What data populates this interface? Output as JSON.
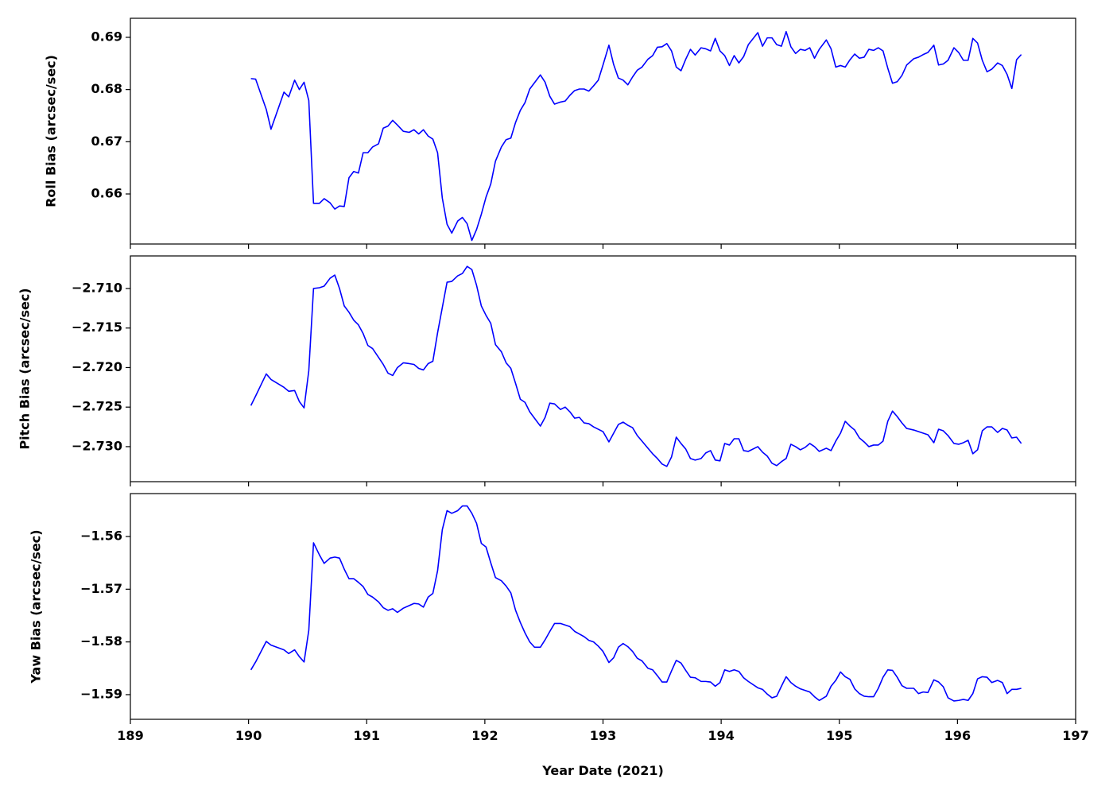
{
  "chart_data": [
    {
      "type": "line",
      "ylabel": "Roll Bias (arcsec/sec)",
      "color": "#0000ff",
      "xlim": [
        189,
        197
      ],
      "ylim": [
        0.65041,
        0.69365
      ],
      "yticks": [
        0.66,
        0.67,
        0.68,
        0.69
      ],
      "x": [
        190.02,
        190.06,
        190.15,
        190.19,
        190.3,
        190.34,
        190.39,
        190.43,
        190.47,
        190.51,
        190.55,
        190.6,
        190.64,
        190.69,
        190.73,
        190.77,
        190.81,
        190.85,
        190.89,
        190.93,
        190.97,
        191.01,
        191.05,
        191.1,
        191.14,
        191.18,
        191.22,
        191.26,
        191.31,
        191.36,
        191.4,
        191.44,
        191.48,
        191.52,
        191.56,
        191.6,
        191.64,
        191.68,
        191.72,
        191.77,
        191.81,
        191.85,
        191.89,
        191.93,
        191.97,
        192.01,
        192.05,
        192.09,
        192.14,
        192.18,
        192.22,
        192.26,
        192.3,
        192.34,
        192.38,
        192.42,
        192.47,
        192.51,
        192.55,
        192.59,
        192.64,
        192.68,
        192.72,
        192.76,
        192.8,
        192.84,
        192.88,
        192.92,
        192.96,
        193.0,
        193.05,
        193.09,
        193.13,
        193.17,
        193.21,
        193.25,
        193.29,
        193.33,
        193.38,
        193.42,
        193.46,
        193.5,
        193.54,
        193.58,
        193.62,
        193.66,
        193.7,
        193.74,
        193.78,
        193.83,
        193.87,
        193.91,
        193.95,
        193.99,
        194.03,
        194.07,
        194.11,
        194.15,
        194.19,
        194.23,
        194.31,
        194.35,
        194.39,
        194.43,
        194.47,
        194.51,
        194.55,
        194.59,
        194.63,
        194.67,
        194.71,
        194.75,
        194.79,
        194.83,
        194.89,
        194.93,
        194.97,
        195.01,
        195.05,
        195.09,
        195.13,
        195.17,
        195.21,
        195.25,
        195.29,
        195.33,
        195.37,
        195.41,
        195.45,
        195.49,
        195.53,
        195.57,
        195.63,
        195.67,
        195.71,
        195.75,
        195.8,
        195.84,
        195.88,
        195.92,
        195.97,
        196.01,
        196.05,
        196.09,
        196.13,
        196.17,
        196.21,
        196.25,
        196.29,
        196.34,
        196.38,
        196.42,
        196.46,
        196.5,
        196.54
      ],
      "values": [
        0.6821,
        0.682,
        0.6762,
        0.6724,
        0.6795,
        0.6786,
        0.6818,
        0.68,
        0.6814,
        0.6779,
        0.6582,
        0.6582,
        0.6591,
        0.6583,
        0.6571,
        0.6577,
        0.6576,
        0.6631,
        0.6643,
        0.664,
        0.6679,
        0.6679,
        0.669,
        0.6696,
        0.6726,
        0.673,
        0.6741,
        0.6732,
        0.672,
        0.6718,
        0.6723,
        0.6715,
        0.6723,
        0.6711,
        0.6705,
        0.6679,
        0.6592,
        0.6542,
        0.6525,
        0.6548,
        0.6555,
        0.6543,
        0.6511,
        0.6532,
        0.6561,
        0.6594,
        0.6619,
        0.6663,
        0.669,
        0.6704,
        0.6707,
        0.6737,
        0.676,
        0.6775,
        0.6801,
        0.6813,
        0.6828,
        0.6814,
        0.6787,
        0.6772,
        0.6776,
        0.6778,
        0.6789,
        0.6798,
        0.6801,
        0.6801,
        0.6797,
        0.6807,
        0.6818,
        0.6847,
        0.6885,
        0.6848,
        0.6822,
        0.6818,
        0.6809,
        0.6824,
        0.6837,
        0.6843,
        0.6858,
        0.6865,
        0.6881,
        0.6882,
        0.6888,
        0.6874,
        0.6843,
        0.6836,
        0.6858,
        0.6877,
        0.6866,
        0.688,
        0.6878,
        0.6874,
        0.6898,
        0.6874,
        0.6865,
        0.6846,
        0.6865,
        0.6851,
        0.6863,
        0.6886,
        0.6909,
        0.6883,
        0.6899,
        0.6899,
        0.6886,
        0.6883,
        0.6911,
        0.6882,
        0.6869,
        0.6877,
        0.6875,
        0.688,
        0.686,
        0.6877,
        0.6895,
        0.6878,
        0.6843,
        0.6846,
        0.6843,
        0.6857,
        0.6868,
        0.686,
        0.6862,
        0.6877,
        0.6875,
        0.688,
        0.6874,
        0.6841,
        0.6812,
        0.6815,
        0.6827,
        0.6847,
        0.6859,
        0.6862,
        0.6867,
        0.6871,
        0.6885,
        0.6847,
        0.6849,
        0.6856,
        0.688,
        0.6871,
        0.6856,
        0.6856,
        0.6898,
        0.6889,
        0.6856,
        0.6834,
        0.6839,
        0.6851,
        0.6846,
        0.6829,
        0.6802,
        0.6857,
        0.6867
      ]
    },
    {
      "type": "line",
      "ylabel": "Pitch Bias (arcsec/sec)",
      "color": "#0000ff",
      "xlim": [
        189,
        197
      ],
      "ylim": [
        -2.73443,
        -2.70588
      ],
      "yticks": [
        {
          "value": -2.73,
          "label": "−2.730"
        },
        {
          "value": -2.725,
          "label": "−2.725"
        },
        {
          "value": -2.72,
          "label": "−2.720"
        },
        {
          "value": -2.715,
          "label": "−2.715"
        },
        {
          "value": -2.71,
          "label": "−2.710"
        }
      ],
      "x": [
        190.02,
        190.06,
        190.15,
        190.19,
        190.3,
        190.34,
        190.39,
        190.43,
        190.47,
        190.51,
        190.55,
        190.6,
        190.64,
        190.69,
        190.73,
        190.77,
        190.81,
        190.85,
        190.89,
        190.93,
        190.97,
        191.01,
        191.05,
        191.1,
        191.14,
        191.18,
        191.22,
        191.26,
        191.31,
        191.36,
        191.4,
        191.44,
        191.48,
        191.52,
        191.56,
        191.6,
        191.64,
        191.68,
        191.72,
        191.77,
        191.81,
        191.85,
        191.89,
        191.93,
        191.97,
        192.01,
        192.05,
        192.09,
        192.14,
        192.18,
        192.22,
        192.26,
        192.3,
        192.34,
        192.38,
        192.42,
        192.47,
        192.51,
        192.55,
        192.59,
        192.64,
        192.68,
        192.72,
        192.76,
        192.8,
        192.84,
        192.88,
        192.92,
        192.96,
        193.0,
        193.05,
        193.09,
        193.13,
        193.17,
        193.21,
        193.25,
        193.29,
        193.33,
        193.38,
        193.42,
        193.46,
        193.5,
        193.54,
        193.58,
        193.62,
        193.66,
        193.7,
        193.74,
        193.78,
        193.83,
        193.87,
        193.91,
        193.95,
        193.99,
        194.03,
        194.07,
        194.11,
        194.15,
        194.19,
        194.23,
        194.31,
        194.35,
        194.39,
        194.43,
        194.47,
        194.51,
        194.55,
        194.59,
        194.63,
        194.67,
        194.71,
        194.75,
        194.79,
        194.83,
        194.89,
        194.93,
        194.97,
        195.01,
        195.05,
        195.09,
        195.13,
        195.17,
        195.21,
        195.25,
        195.29,
        195.33,
        195.37,
        195.41,
        195.45,
        195.49,
        195.53,
        195.57,
        195.63,
        195.67,
        195.71,
        195.75,
        195.8,
        195.84,
        195.88,
        195.92,
        195.97,
        196.01,
        196.05,
        196.09,
        196.13,
        196.17,
        196.21,
        196.25,
        196.29,
        196.34,
        196.38,
        196.42,
        196.46,
        196.5,
        196.54
      ],
      "values": [
        -2.7248,
        -2.7236,
        -2.7208,
        -2.7215,
        -2.7225,
        -2.723,
        -2.7229,
        -2.7243,
        -2.7251,
        -2.7204,
        -2.71,
        -2.7099,
        -2.7097,
        -2.7087,
        -2.7083,
        -2.71,
        -2.7122,
        -2.713,
        -2.714,
        -2.7146,
        -2.7157,
        -2.7172,
        -2.7176,
        -2.7187,
        -2.7196,
        -2.7207,
        -2.721,
        -2.72,
        -2.7194,
        -2.7195,
        -2.7196,
        -2.7201,
        -2.7203,
        -2.7195,
        -2.7192,
        -2.7156,
        -2.7124,
        -2.7092,
        -2.7091,
        -2.7084,
        -2.7081,
        -2.7072,
        -2.7076,
        -2.7096,
        -2.7122,
        -2.7134,
        -2.7144,
        -2.7171,
        -2.718,
        -2.7194,
        -2.7201,
        -2.722,
        -2.724,
        -2.7244,
        -2.7256,
        -2.7264,
        -2.7274,
        -2.7263,
        -2.7245,
        -2.7246,
        -2.7253,
        -2.725,
        -2.7256,
        -2.7264,
        -2.7263,
        -2.727,
        -2.7271,
        -2.7275,
        -2.7278,
        -2.7281,
        -2.7294,
        -2.7283,
        -2.7272,
        -2.7269,
        -2.7273,
        -2.7276,
        -2.7286,
        -2.7293,
        -2.7302,
        -2.7309,
        -2.7315,
        -2.7322,
        -2.7325,
        -2.7313,
        -2.7288,
        -2.7296,
        -2.7303,
        -2.7315,
        -2.7317,
        -2.7315,
        -2.7308,
        -2.7305,
        -2.7317,
        -2.7318,
        -2.7296,
        -2.7298,
        -2.729,
        -2.729,
        -2.7305,
        -2.7306,
        -2.73,
        -2.7307,
        -2.7312,
        -2.7321,
        -2.7324,
        -2.7319,
        -2.7315,
        -2.7297,
        -2.73,
        -2.7304,
        -2.7301,
        -2.7296,
        -2.73,
        -2.7306,
        -2.7302,
        -2.7305,
        -2.7293,
        -2.7283,
        -2.7268,
        -2.7274,
        -2.7279,
        -2.7289,
        -2.7294,
        -2.73,
        -2.7298,
        -2.7298,
        -2.7293,
        -2.7268,
        -2.7255,
        -2.7262,
        -2.727,
        -2.7277,
        -2.7279,
        -2.7281,
        -2.7283,
        -2.7285,
        -2.7295,
        -2.7278,
        -2.728,
        -2.7286,
        -2.7296,
        -2.7297,
        -2.7295,
        -2.7292,
        -2.7309,
        -2.7304,
        -2.728,
        -2.7275,
        -2.7275,
        -2.7282,
        -2.7277,
        -2.7279,
        -2.7289,
        -2.7288,
        -2.7296
      ]
    },
    {
      "type": "line",
      "ylabel": "Yaw Bias (arcsec/sec)",
      "xlabel": "Year Date (2021)",
      "color": "#0000ff",
      "xlim": [
        189,
        197
      ],
      "xticks": [
        189,
        190,
        191,
        192,
        193,
        194,
        195,
        196,
        197
      ],
      "ylim": [
        -1.59468,
        -1.55186
      ],
      "yticks": [
        {
          "value": -1.59,
          "label": "−1.59"
        },
        {
          "value": -1.58,
          "label": "−1.58"
        },
        {
          "value": -1.57,
          "label": "−1.57"
        },
        {
          "value": -1.56,
          "label": "−1.56"
        }
      ],
      "x": [
        190.02,
        190.06,
        190.15,
        190.19,
        190.3,
        190.34,
        190.39,
        190.43,
        190.47,
        190.51,
        190.55,
        190.6,
        190.64,
        190.69,
        190.73,
        190.77,
        190.81,
        190.85,
        190.89,
        190.93,
        190.97,
        191.01,
        191.05,
        191.1,
        191.14,
        191.18,
        191.22,
        191.26,
        191.31,
        191.36,
        191.4,
        191.44,
        191.48,
        191.52,
        191.56,
        191.6,
        191.64,
        191.68,
        191.72,
        191.77,
        191.81,
        191.85,
        191.89,
        191.93,
        191.97,
        192.01,
        192.05,
        192.09,
        192.14,
        192.18,
        192.22,
        192.26,
        192.3,
        192.34,
        192.38,
        192.42,
        192.47,
        192.51,
        192.55,
        192.59,
        192.64,
        192.68,
        192.72,
        192.76,
        192.8,
        192.84,
        192.88,
        192.92,
        192.96,
        193.0,
        193.05,
        193.09,
        193.13,
        193.17,
        193.21,
        193.25,
        193.29,
        193.33,
        193.38,
        193.42,
        193.46,
        193.5,
        193.54,
        193.58,
        193.62,
        193.66,
        193.7,
        193.74,
        193.78,
        193.83,
        193.87,
        193.91,
        193.95,
        193.99,
        194.03,
        194.07,
        194.11,
        194.15,
        194.19,
        194.23,
        194.31,
        194.35,
        194.39,
        194.43,
        194.47,
        194.51,
        194.55,
        194.59,
        194.63,
        194.67,
        194.71,
        194.75,
        194.79,
        194.83,
        194.89,
        194.93,
        194.97,
        195.01,
        195.05,
        195.09,
        195.13,
        195.17,
        195.21,
        195.25,
        195.29,
        195.33,
        195.37,
        195.41,
        195.45,
        195.49,
        195.53,
        195.57,
        195.63,
        195.67,
        195.71,
        195.75,
        195.8,
        195.84,
        195.88,
        195.92,
        195.97,
        196.01,
        196.05,
        196.09,
        196.13,
        196.17,
        196.21,
        196.25,
        196.29,
        196.34,
        196.38,
        196.42,
        196.46,
        196.5,
        196.54
      ],
      "values": [
        -1.5853,
        -1.5838,
        -1.5799,
        -1.5806,
        -1.5815,
        -1.5822,
        -1.5815,
        -1.5828,
        -1.5838,
        -1.5778,
        -1.5612,
        -1.5635,
        -1.5651,
        -1.5641,
        -1.5639,
        -1.5641,
        -1.5662,
        -1.568,
        -1.568,
        -1.5687,
        -1.5695,
        -1.571,
        -1.5715,
        -1.5724,
        -1.5735,
        -1.574,
        -1.5737,
        -1.5744,
        -1.5736,
        -1.5731,
        -1.5727,
        -1.5728,
        -1.5734,
        -1.5715,
        -1.5708,
        -1.5665,
        -1.5587,
        -1.5551,
        -1.5556,
        -1.5551,
        -1.5542,
        -1.5542,
        -1.5556,
        -1.5575,
        -1.5613,
        -1.562,
        -1.565,
        -1.5678,
        -1.5684,
        -1.5694,
        -1.5707,
        -1.574,
        -1.5763,
        -1.5783,
        -1.58,
        -1.581,
        -1.581,
        -1.5796,
        -1.578,
        -1.5765,
        -1.5765,
        -1.5768,
        -1.5771,
        -1.578,
        -1.5785,
        -1.579,
        -1.5797,
        -1.58,
        -1.5808,
        -1.5818,
        -1.5839,
        -1.583,
        -1.581,
        -1.5803,
        -1.5809,
        -1.5818,
        -1.5831,
        -1.5836,
        -1.585,
        -1.5853,
        -1.5864,
        -1.5876,
        -1.5876,
        -1.5855,
        -1.5835,
        -1.584,
        -1.5854,
        -1.5867,
        -1.5868,
        -1.5875,
        -1.5875,
        -1.5876,
        -1.5884,
        -1.5877,
        -1.5853,
        -1.5856,
        -1.5853,
        -1.5856,
        -1.5868,
        -1.5875,
        -1.5887,
        -1.589,
        -1.5899,
        -1.5906,
        -1.5903,
        -1.5884,
        -1.5866,
        -1.5877,
        -1.5884,
        -1.5889,
        -1.5892,
        -1.5895,
        -1.5904,
        -1.5911,
        -1.5903,
        -1.5884,
        -1.5873,
        -1.5857,
        -1.5866,
        -1.5871,
        -1.5889,
        -1.5898,
        -1.5903,
        -1.5904,
        -1.5904,
        -1.5888,
        -1.5867,
        -1.5853,
        -1.5854,
        -1.5867,
        -1.5883,
        -1.5888,
        -1.5888,
        -1.5898,
        -1.5895,
        -1.5896,
        -1.5872,
        -1.5876,
        -1.5885,
        -1.5906,
        -1.5912,
        -1.5911,
        -1.5909,
        -1.5911,
        -1.5898,
        -1.587,
        -1.5866,
        -1.5867,
        -1.5877,
        -1.5873,
        -1.5877,
        -1.5898,
        -1.589,
        -1.589,
        -1.5888
      ]
    }
  ]
}
